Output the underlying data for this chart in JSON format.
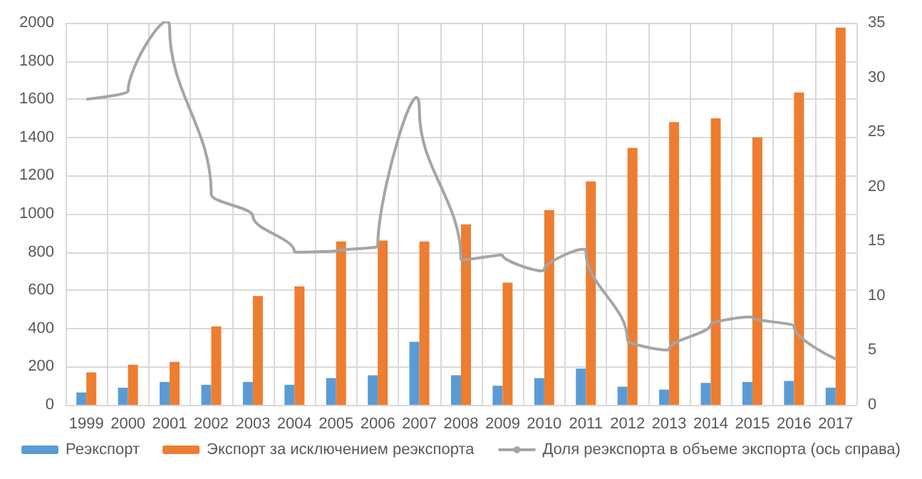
{
  "chart_data": {
    "type": "bar",
    "categories": [
      "1999",
      "2000",
      "2001",
      "2002",
      "2003",
      "2004",
      "2005",
      "2006",
      "2007",
      "2008",
      "2009",
      "2010",
      "2011",
      "2012",
      "2013",
      "2014",
      "2015",
      "2016",
      "2017"
    ],
    "series": [
      {
        "name": "Реэкспорт",
        "color": "#5b9bd5",
        "values": [
          65,
          90,
          120,
          105,
          120,
          105,
          140,
          155,
          330,
          155,
          100,
          140,
          190,
          95,
          80,
          115,
          120,
          125,
          90
        ]
      },
      {
        "name": "Экспорт за исключением реэкспорта",
        "color": "#ed7d31",
        "values": [
          170,
          210,
          225,
          410,
          570,
          620,
          855,
          860,
          855,
          945,
          640,
          1020,
          1170,
          1345,
          1480,
          1500,
          1400,
          1635,
          1975
        ]
      },
      {
        "name": "Доля реэкспорта в объеме экспорта (ось справа)",
        "type": "line",
        "axis": "y2",
        "color": "#a5a5a5",
        "values": [
          28.0,
          28.7,
          34.6,
          19.3,
          17.3,
          14.0,
          14.1,
          14.5,
          27.0,
          13.3,
          13.7,
          12.4,
          14.1,
          5.9,
          5.1,
          7.4,
          8.0,
          7.2,
          4.2
        ]
      }
    ],
    "ylim": [
      0,
      2000
    ],
    "yticks": [
      0,
      200,
      400,
      600,
      800,
      1000,
      1200,
      1400,
      1600,
      1800,
      2000
    ],
    "y2lim": [
      0,
      35
    ],
    "y2ticks": [
      0,
      5,
      10,
      15,
      20,
      25,
      30,
      35
    ],
    "grid": true,
    "legend": "bottom",
    "marker": "none"
  }
}
